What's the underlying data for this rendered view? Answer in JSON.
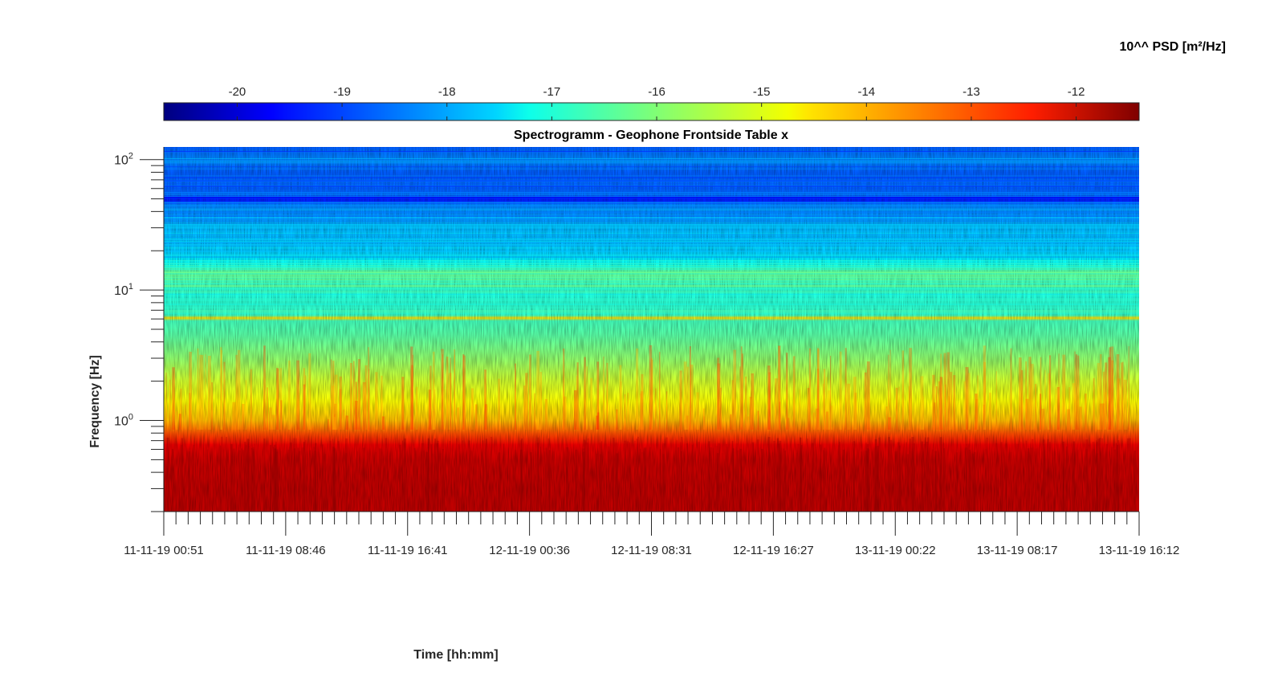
{
  "chart_data": {
    "type": "heatmap",
    "title": "Spectrogramm - Geophone Frontside Table x",
    "xlabel": "Time [hh:mm]",
    "ylabel": "Frequency [Hz]",
    "x_ticks": [
      "11-11-19 00:51",
      "11-11-19 08:46",
      "11-11-19 16:41",
      "12-11-19 00:36",
      "12-11-19 08:31",
      "12-11-19 16:27",
      "13-11-19 00:22",
      "13-11-19 08:17",
      "13-11-19 16:12"
    ],
    "y_scale": "log",
    "ylim": [
      0.2,
      125
    ],
    "y_ticks": [
      {
        "value": 1,
        "base": "10",
        "exp": "0"
      },
      {
        "value": 10,
        "base": "10",
        "exp": "1"
      },
      {
        "value": 100,
        "base": "10",
        "exp": "2"
      }
    ],
    "colorbar": {
      "label": "10^^ PSD [m²/Hz]",
      "colormap": "jet",
      "range": [
        -20.7,
        -11.4
      ],
      "ticks": [
        "-20",
        "-19",
        "-18",
        "-17",
        "-16",
        "-15",
        "-14",
        "-13",
        "-12"
      ],
      "tick_values": [
        -20,
        -19,
        -18,
        -17,
        -16,
        -15,
        -14,
        -13,
        -12
      ],
      "placement": "top"
    },
    "power_profile": [
      {
        "freq": 0.2,
        "value": -12.0
      },
      {
        "freq": 0.3,
        "value": -12.0
      },
      {
        "freq": 0.5,
        "value": -12.1
      },
      {
        "freq": 0.65,
        "value": -12.4
      },
      {
        "freq": 0.8,
        "value": -13.3
      },
      {
        "freq": 1.0,
        "value": -14.3
      },
      {
        "freq": 1.4,
        "value": -14.9
      },
      {
        "freq": 2.0,
        "value": -15.3
      },
      {
        "freq": 3.0,
        "value": -15.9
      },
      {
        "freq": 4.5,
        "value": -16.4
      },
      {
        "freq": 5.8,
        "value": -16.6
      },
      {
        "freq": 6.1,
        "value": -14.6
      },
      {
        "freq": 6.4,
        "value": -16.7
      },
      {
        "freq": 9.0,
        "value": -16.9
      },
      {
        "freq": 11.5,
        "value": -16.5
      },
      {
        "freq": 14.0,
        "value": -16.4
      },
      {
        "freq": 16.0,
        "value": -17.2
      },
      {
        "freq": 20.0,
        "value": -17.7
      },
      {
        "freq": 30.0,
        "value": -17.9
      },
      {
        "freq": 45.0,
        "value": -18.4
      },
      {
        "freq": 50.0,
        "value": -19.3
      },
      {
        "freq": 55.0,
        "value": -18.6
      },
      {
        "freq": 80.0,
        "value": -18.7
      },
      {
        "freq": 100.0,
        "value": -18.3
      },
      {
        "freq": 125.0,
        "value": -18.7
      }
    ],
    "grid": false
  }
}
